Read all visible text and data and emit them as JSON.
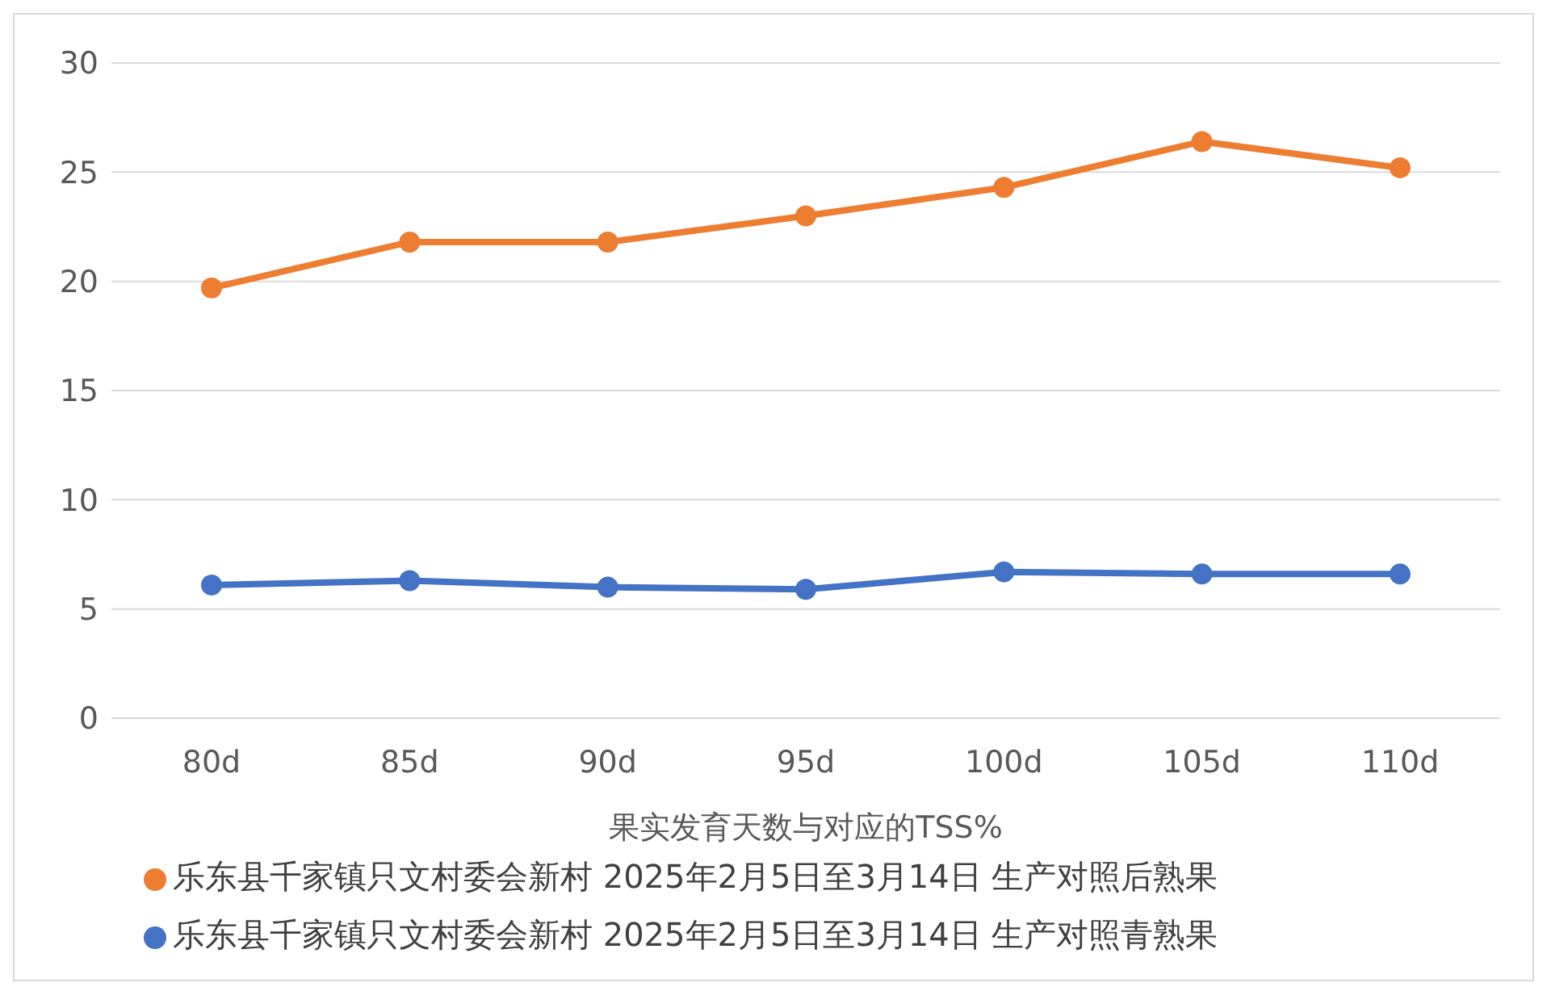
{
  "chart_data": {
    "type": "line",
    "xlabel": "果实发育天数与对应的TSS%",
    "categories": [
      "80d",
      "85d",
      "90d",
      "95d",
      "100d",
      "105d",
      "110d"
    ],
    "series": [
      {
        "name": "乐东县千家镇只文村委会新村 2025年2月5日至3月14日 生产对照后熟果",
        "color": "#ed7d31",
        "values": [
          19.7,
          21.8,
          21.8,
          23.0,
          24.3,
          26.4,
          25.2
        ]
      },
      {
        "name": "乐东县千家镇只文村委会新村 2025年2月5日至3月14日 生产对照青熟果",
        "color": "#4472c4",
        "values": [
          6.1,
          6.3,
          6.0,
          5.9,
          6.7,
          6.6,
          6.6
        ]
      }
    ],
    "ylim": [
      0,
      30
    ],
    "yticks": [
      0,
      5,
      10,
      15,
      20,
      25,
      30
    ],
    "grid": "y",
    "legend": "bottom",
    "marker": "circle",
    "line_style": "solid"
  }
}
